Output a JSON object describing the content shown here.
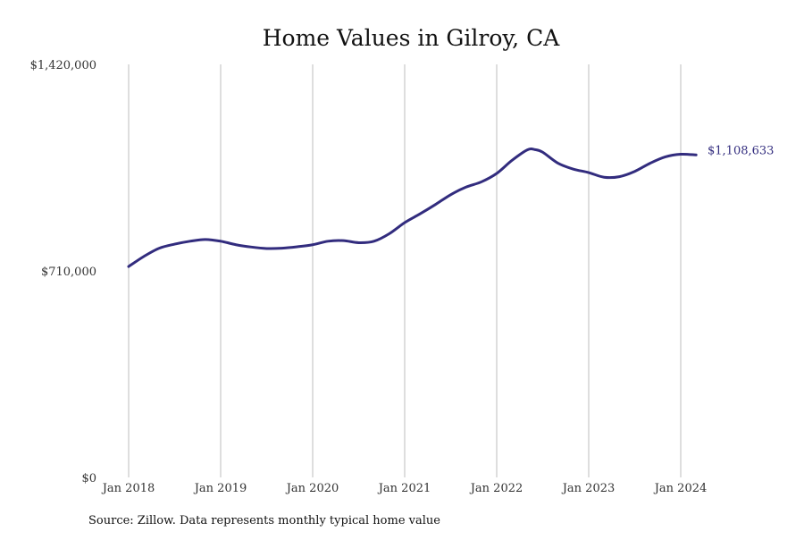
{
  "chart_data": {
    "type": "line",
    "title": "Home Values in Gilroy, CA",
    "source_note": "Source: Zillow. Data represents monthly typical home value",
    "xlabel": "",
    "ylabel": "",
    "x_ticks": [
      "Jan 2018",
      "Jan 2019",
      "Jan 2020",
      "Jan 2021",
      "Jan 2022",
      "Jan 2023",
      "Jan 2024"
    ],
    "y_ticks": [
      "$0",
      "$710,000",
      "$1,420,000"
    ],
    "y_tick_values": [
      0,
      710000,
      1420000
    ],
    "ylim": [
      0,
      1420000
    ],
    "xlim": [
      "2018-01",
      "2024-03"
    ],
    "grid": "vertical",
    "line_color": "#322c7e",
    "end_label": "$1,108,633",
    "series": [
      {
        "values": [
          [
            "2018-01",
            725000
          ],
          [
            "2018-03",
            760000
          ],
          [
            "2018-05",
            788000
          ],
          [
            "2018-07",
            802000
          ],
          [
            "2018-09",
            812000
          ],
          [
            "2018-11",
            818000
          ],
          [
            "2019-01",
            812000
          ],
          [
            "2019-03",
            800000
          ],
          [
            "2019-05",
            792000
          ],
          [
            "2019-07",
            787000
          ],
          [
            "2019-09",
            788000
          ],
          [
            "2019-11",
            793000
          ],
          [
            "2020-01",
            800000
          ],
          [
            "2020-03",
            812000
          ],
          [
            "2020-05",
            814000
          ],
          [
            "2020-07",
            807000
          ],
          [
            "2020-09",
            812000
          ],
          [
            "2020-11",
            838000
          ],
          [
            "2021-01",
            876000
          ],
          [
            "2021-03",
            906000
          ],
          [
            "2021-05",
            938000
          ],
          [
            "2021-07",
            972000
          ],
          [
            "2021-09",
            998000
          ],
          [
            "2021-11",
            1016000
          ],
          [
            "2022-01",
            1045000
          ],
          [
            "2022-03",
            1090000
          ],
          [
            "2022-05",
            1126000
          ],
          [
            "2022-06",
            1127000
          ],
          [
            "2022-07",
            1118000
          ],
          [
            "2022-09",
            1080000
          ],
          [
            "2022-11",
            1060000
          ],
          [
            "2023-01",
            1048000
          ],
          [
            "2023-03",
            1032000
          ],
          [
            "2023-05",
            1034000
          ],
          [
            "2023-07",
            1052000
          ],
          [
            "2023-09",
            1080000
          ],
          [
            "2023-11",
            1102000
          ],
          [
            "2024-01",
            1111000
          ],
          [
            "2024-03",
            1108633
          ]
        ]
      }
    ]
  }
}
